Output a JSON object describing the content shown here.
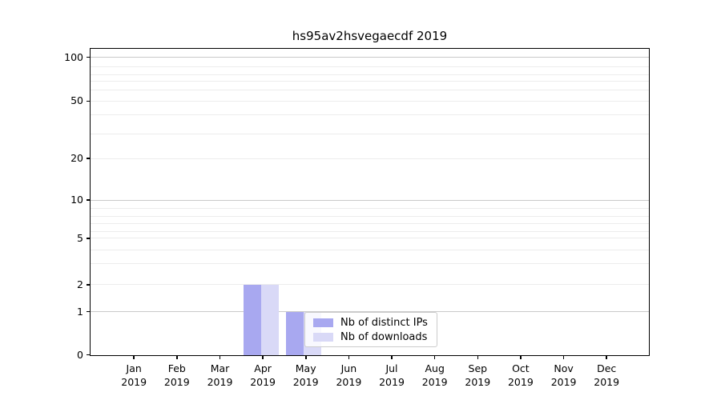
{
  "chart_data": {
    "type": "bar",
    "title": "hs95av2hsvegaecdf 2019",
    "categories": [
      "Jan 2019",
      "Feb 2019",
      "Mar 2019",
      "Apr 2019",
      "May 2019",
      "Jun 2019",
      "Jul 2019",
      "Aug 2019",
      "Sep 2019",
      "Oct 2019",
      "Nov 2019",
      "Dec 2019"
    ],
    "series": [
      {
        "name": "Nb of distinct IPs",
        "color": "#a8a8f0",
        "values": [
          0,
          0,
          0,
          2,
          1,
          0,
          0,
          0,
          0,
          0,
          0,
          0
        ]
      },
      {
        "name": "Nb of downloads",
        "color": "#d9d9f7",
        "values": [
          0,
          0,
          0,
          2,
          1,
          0,
          0,
          0,
          0,
          0,
          0,
          0
        ]
      }
    ],
    "xlabel": "",
    "ylabel": "",
    "y_ticks": [
      0,
      1,
      2,
      5,
      10,
      20,
      50,
      100
    ],
    "y_scale": "symlog",
    "ylim": [
      0,
      100
    ],
    "grid": true,
    "legend": {
      "position": "lower center",
      "entries": [
        "Nb of distinct IPs",
        "Nb of downloads"
      ]
    }
  }
}
